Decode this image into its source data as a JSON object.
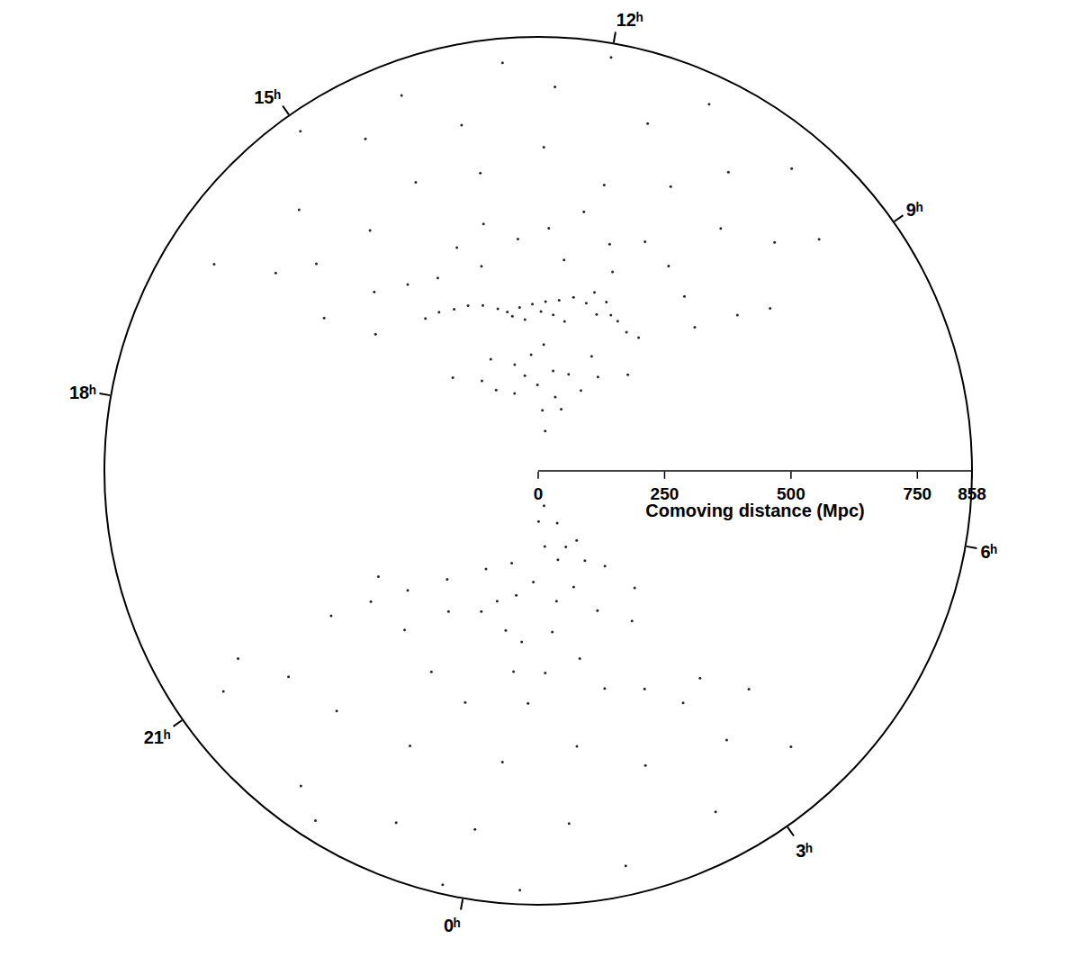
{
  "chart_data": {
    "type": "scatter",
    "xlabel": "",
    "ylabel": "Comoving distance (Mpc)",
    "color": "#000000",
    "marker": "circle",
    "grid": false,
    "xlim": [
      0,
      24
    ],
    "xticks": [
      {
        "value": 0,
        "label": "0ʰ"
      },
      {
        "value": 3,
        "label": "3ʰ"
      },
      {
        "value": 6,
        "label": "6ʰ"
      },
      {
        "value": 9,
        "label": "9ʰ"
      },
      {
        "value": 12,
        "label": "12ʰ"
      },
      {
        "value": 15,
        "label": "15ʰ"
      },
      {
        "value": 18,
        "label": "18ʰ"
      },
      {
        "value": 21,
        "label": "21ʰ"
      }
    ],
    "ylim": [
      0,
      858
    ],
    "yticks": [
      0,
      250,
      500,
      750,
      858
    ],
    "x": [
      10.2,
      10.5,
      10.8,
      11.0,
      11.3,
      11.6,
      11.9,
      12.2,
      12.5,
      12.8,
      13.1,
      13.4,
      13.6,
      13.9,
      14.2,
      14.5,
      14.8,
      15.1,
      12.0,
      12.3,
      12.6,
      13.0,
      13.3,
      11.2,
      11.5,
      12.0,
      12.4,
      11.8,
      12.7,
      13.2,
      11.5,
      12.9,
      13.5,
      14.2,
      14.8,
      15.5,
      10.8,
      10.5,
      11.0,
      9.8,
      12.1,
      12.5,
      13.8,
      14.5,
      11.3,
      10.0,
      10.5,
      11.0,
      11.5,
      12.0,
      12.5,
      13.0,
      13.5,
      14.0,
      14.5,
      15.0,
      15.5,
      16.0,
      9.5,
      9.2,
      9.0,
      10.2,
      11.0,
      11.8,
      12.6,
      13.4,
      14.2,
      15.0,
      15.8,
      16.3,
      9.6,
      10.5,
      11.5,
      12.5,
      13.5,
      14.5,
      15.5,
      16.2,
      10.0,
      11.0,
      12.0,
      13.0,
      14.0,
      15.0,
      9.3,
      16.5,
      12.2,
      13.7,
      11.3,
      1.0,
      1.5,
      2.0,
      2.5,
      0.5,
      0.0,
      23.5,
      1.2,
      1.8,
      2.6,
      3.0,
      2.2,
      1.0,
      0.3,
      23.9,
      23.2,
      22.5,
      22.0,
      21.5,
      2.8,
      3.3,
      1.5,
      0.8,
      22.0,
      21.2,
      2.8,
      3.2,
      2.4,
      1.8,
      0.5,
      23.5,
      22.8,
      21.0,
      20.9,
      1.2,
      0.2,
      23.0,
      22.0,
      21.3,
      2.0,
      3.0,
      1.0,
      0.0,
      23.2,
      22.2,
      21.0,
      2.5,
      3.5,
      1.5,
      0.5,
      23.8,
      22.5,
      0.7,
      1.3,
      2.0,
      23.6,
      22.8,
      0.2,
      3.6,
      20.8
    ],
    "values": [
      330,
      325,
      335,
      340,
      330,
      345,
      350,
      340,
      335,
      330,
      325,
      320,
      330,
      345,
      355,
      360,
      370,
      375,
      300,
      310,
      315,
      300,
      310,
      360,
      370,
      80,
      120,
      150,
      170,
      190,
      200,
      230,
      215,
      240,
      210,
      250,
      180,
      220,
      250,
      260,
      200,
      250,
      160,
      180,
      130,
      450,
      480,
      500,
      470,
      520,
      480,
      460,
      500,
      470,
      430,
      450,
      480,
      420,
      420,
      500,
      560,
      600,
      620,
      580,
      640,
      600,
      620,
      580,
      600,
      520,
      650,
      700,
      720,
      760,
      700,
      740,
      700,
      650,
      780,
      800,
      830,
      810,
      790,
      820,
      720,
      760,
      420,
      420,
      420,
      150,
      180,
      160,
      200,
      220,
      250,
      270,
      260,
      240,
      157,
      230,
      300,
      320,
      340,
      322,
      300,
      330,
      280,
      350,
      350,
      300,
      380,
      400,
      411,
      420,
      541,
      520,
      480,
      450,
      460,
      480,
      450,
      500,
      379,
      550,
      580,
      600,
      620,
      640,
      620,
      650,
      700,
      720,
      750,
      780,
      760,
      760,
      740,
      800,
      830,
      840,
      820,
      100,
      70,
      110,
      190,
      220,
      400,
      600,
      700
    ]
  }
}
